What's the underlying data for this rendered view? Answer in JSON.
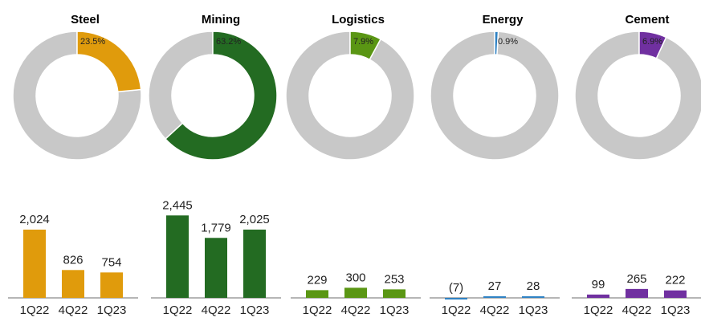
{
  "chart_data": {
    "type": "donut+bar",
    "remainder_color": "#c8c8c8",
    "categories": [
      "1Q22",
      "4Q22",
      "1Q23"
    ],
    "segments": [
      {
        "name": "Steel",
        "share_label": "23.5%",
        "share": 23.5,
        "color": "#e09b0c",
        "values": [
          2024,
          826,
          754
        ],
        "value_labels": [
          "2,024",
          "826",
          "754"
        ]
      },
      {
        "name": "Mining",
        "share_label": "63.2%",
        "share": 63.2,
        "color": "#236b22",
        "values": [
          2445,
          1779,
          2025
        ],
        "value_labels": [
          "2,445",
          "1,779",
          "2,025"
        ]
      },
      {
        "name": "Logistics",
        "share_label": "7.9%",
        "share": 7.9,
        "color": "#5a9614",
        "values": [
          229,
          300,
          253
        ],
        "value_labels": [
          "229",
          "300",
          "253"
        ]
      },
      {
        "name": "Energy",
        "share_label": "0.9%",
        "share": 0.9,
        "color": "#2f82c4",
        "values": [
          -7,
          27,
          28
        ],
        "value_labels": [
          "(7)",
          "27",
          "28"
        ]
      },
      {
        "name": "Cement",
        "share_label": "6.9%",
        "share": 6.9,
        "color": "#7030a0",
        "values": [
          99,
          265,
          222
        ],
        "value_labels": [
          "99",
          "265",
          "222"
        ]
      }
    ]
  }
}
